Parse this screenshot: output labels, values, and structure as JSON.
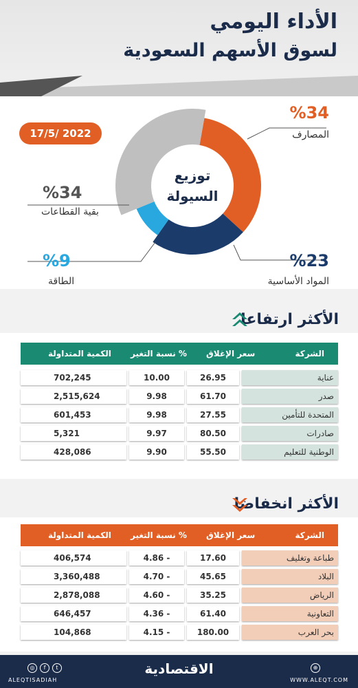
{
  "header": {
    "title_line1": "الأداء اليومي",
    "title_line2": "لسوق الأسهم السعودية",
    "date": "17/5/ 2022"
  },
  "chart_data": {
    "type": "pie",
    "center_label_line1": "توزيع",
    "center_label_line2": "السيولة",
    "slices": [
      {
        "label": "المصارف",
        "value": 34,
        "display": "%34",
        "color": "#e15f25"
      },
      {
        "label": "المواد الأساسية",
        "value": 23,
        "display": "%23",
        "color": "#1b3b6b"
      },
      {
        "label": "الطاقة",
        "value": 9,
        "display": "%9",
        "color": "#29a8e0"
      },
      {
        "label": "بقية القطاعات",
        "value": 34,
        "display": "%34",
        "color": "#bfbfbf"
      }
    ]
  },
  "gainers": {
    "title": "الأكثر ارتفاعا",
    "header_color": "#1b8a73",
    "columns": [
      "الشركة",
      "سعر الإغلاق",
      "نسبة التغير %",
      "الكمية المتداولة"
    ],
    "rows": [
      {
        "company": "عناية",
        "close": "26.95",
        "change": "10.00",
        "volume": "702,245"
      },
      {
        "company": "صدر",
        "close": "61.70",
        "change": "9.98",
        "volume": "2,515,624"
      },
      {
        "company": "المتحدة للتأمين",
        "close": "27.55",
        "change": "9.98",
        "volume": "601,453"
      },
      {
        "company": "صادرات",
        "close": "80.50",
        "change": "9.97",
        "volume": "5,321"
      },
      {
        "company": "الوطنية للتعليم",
        "close": "55.50",
        "change": "9.90",
        "volume": "428,086"
      }
    ]
  },
  "losers": {
    "title": "الأكثر انخفاضا",
    "header_color": "#e15f25",
    "columns": [
      "الشركة",
      "سعر الإغلاق",
      "نسبة التغير %",
      "الكمية المتداولة"
    ],
    "rows": [
      {
        "company": "طباعة وتغليف",
        "close": "17.60",
        "change": "4.86 -",
        "volume": "406,574"
      },
      {
        "company": "البلاد",
        "close": "45.65",
        "change": "4.70 -",
        "volume": "3,360,488"
      },
      {
        "company": "الرياض",
        "close": "35.25",
        "change": "4.60 -",
        "volume": "2,878,088"
      },
      {
        "company": "التعاونية",
        "close": "61.40",
        "change": "4.36 -",
        "volume": "646,457"
      },
      {
        "company": "بحر العرب",
        "close": "180.00",
        "change": "4.15 -",
        "volume": "104,868"
      }
    ]
  },
  "footer": {
    "logo": "الاقتصادية",
    "handle": "ALEQTISADIAH",
    "website": "WWW.ALEQT.COM"
  }
}
